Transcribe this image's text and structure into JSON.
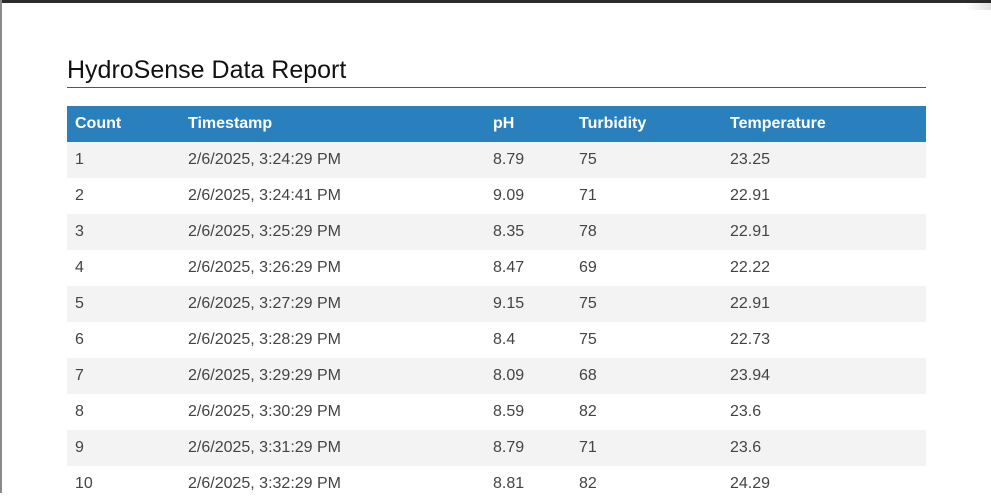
{
  "report": {
    "title": "HydroSense Data Report"
  },
  "table": {
    "headers": [
      "Count",
      "Timestamp",
      "pH",
      "Turbidity",
      "Temperature"
    ],
    "rows": [
      [
        "1",
        "2/6/2025, 3:24:29 PM",
        "8.79",
        "75",
        "23.25"
      ],
      [
        "2",
        "2/6/2025, 3:24:41 PM",
        "9.09",
        "71",
        "22.91"
      ],
      [
        "3",
        "2/6/2025, 3:25:29 PM",
        "8.35",
        "78",
        "22.91"
      ],
      [
        "4",
        "2/6/2025, 3:26:29 PM",
        "8.47",
        "69",
        "22.22"
      ],
      [
        "5",
        "2/6/2025, 3:27:29 PM",
        "9.15",
        "75",
        "22.91"
      ],
      [
        "6",
        "2/6/2025, 3:28:29 PM",
        "8.4",
        "75",
        "22.73"
      ],
      [
        "7",
        "2/6/2025, 3:29:29 PM",
        "8.09",
        "68",
        "23.94"
      ],
      [
        "8",
        "2/6/2025, 3:30:29 PM",
        "8.59",
        "82",
        "23.6"
      ],
      [
        "9",
        "2/6/2025, 3:31:29 PM",
        "8.79",
        "71",
        "23.6"
      ],
      [
        "10",
        "2/6/2025, 3:32:29 PM",
        "8.81",
        "82",
        "24.29"
      ]
    ]
  }
}
